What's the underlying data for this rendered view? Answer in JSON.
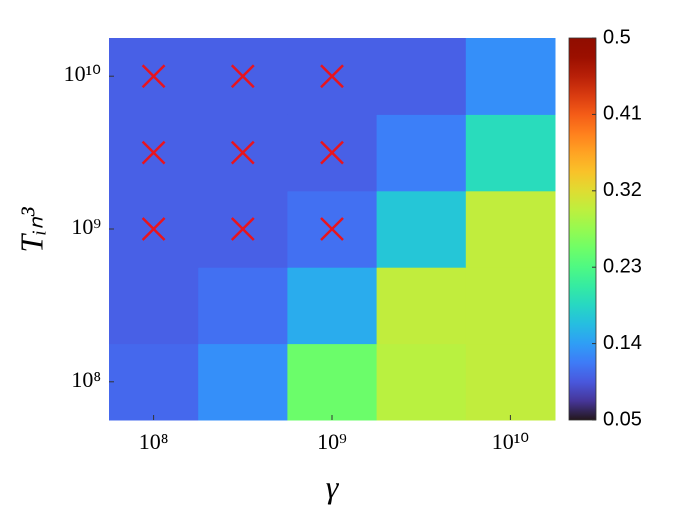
{
  "chart_data": {
    "type": "heatmap",
    "x_label": "γ",
    "y_label": "Tᵢₙ³",
    "x": [
      100000000,
      316227766,
      1000000000,
      3162277660,
      10000000000
    ],
    "y": [
      100000000,
      316227766,
      1000000000,
      3162277660,
      10000000000
    ],
    "z": [
      [
        0.105,
        0.13,
        0.25,
        0.295,
        0.3
      ],
      [
        0.1,
        0.11,
        0.15,
        0.3,
        0.3
      ],
      [
        0.1,
        0.1,
        0.11,
        0.17,
        0.3
      ],
      [
        0.1,
        0.1,
        0.1,
        0.12,
        0.19
      ],
      [
        0.1,
        0.1,
        0.1,
        0.1,
        0.13
      ]
    ],
    "x_scale": "log",
    "y_scale": "log",
    "xlim": [
      56234133,
      17782794100
    ],
    "ylim": [
      56234133,
      17782794100
    ],
    "xticks": [
      {
        "value": 100000000,
        "label": "10⁸"
      },
      {
        "value": 1000000000,
        "label": "10⁹"
      },
      {
        "value": 10000000000,
        "label": "10¹⁰"
      }
    ],
    "yticks": [
      {
        "value": 100000000,
        "label": "10⁸"
      },
      {
        "value": 1000000000,
        "label": "10⁹"
      },
      {
        "value": 10000000000,
        "label": "10¹⁰"
      }
    ],
    "colormap": "turbo",
    "clim": [
      0.05,
      0.5
    ],
    "cticks": [
      0.05,
      0.14,
      0.23,
      0.32,
      0.41,
      0.5
    ],
    "markers": {
      "marker": "x",
      "color": "#e8141e",
      "x": [
        100000000,
        316227766,
        1000000000,
        100000000,
        316227766,
        1000000000,
        100000000,
        316227766,
        1000000000
      ],
      "y": [
        1000000000,
        1000000000,
        1000000000,
        3162277660,
        3162277660,
        3162277660,
        10000000000,
        10000000000,
        10000000000
      ]
    }
  }
}
